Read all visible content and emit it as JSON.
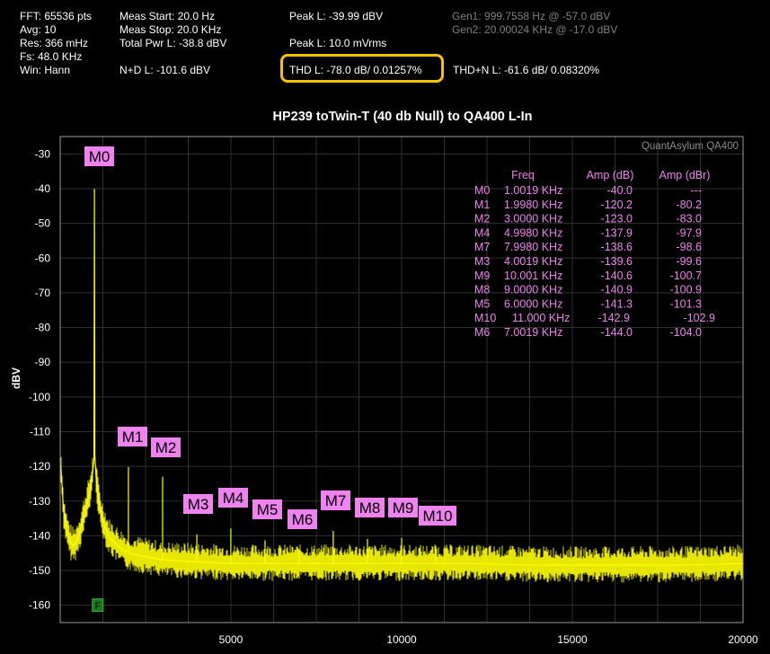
{
  "header": {
    "fft": "FFT: 65536 pts",
    "avg": "Avg: 10",
    "res": "Res: 366 mHz",
    "fs": "Fs: 48.0 KHz",
    "win": "Win: Hann",
    "meas_start": "Meas Start: 20.0 Hz",
    "meas_stop": "Meas Stop: 20.0 KHz",
    "total_pwr": "Total Pwr L: -38.8 dBV",
    "nd": "N+D L: -101.6 dBV",
    "peak_dbv": "Peak L: -39.99 dBV",
    "peak_vrms": "Peak L: 10.0 mVrms",
    "thd": "THD L: -78.0 dB/ 0.01257%",
    "thdn": "THD+N L: -61.6 dB/ 0.08320%",
    "gen1": "Gen1: 999.7558 Hz @ -57.0  dBV",
    "gen2": "Gen2: 20.00024 KHz @ -17.0  dBV"
  },
  "colors": {
    "trace": "#ffff00",
    "marker": "#ee82ee",
    "grid": "#303030",
    "highlight": "#f5c400",
    "f_marker": "#1a7a1a"
  },
  "chart_data": {
    "type": "line",
    "title": "HP239 toTwin-T (40 db Null) to QA400 L-In",
    "watermark": "QuantAsylum QA400",
    "ylabel": "dBV",
    "xlabel": "",
    "xlim": [
      0,
      20000
    ],
    "ylim": [
      -165,
      -25
    ],
    "grid": true,
    "x_ticks": [
      5000,
      10000,
      15000,
      20000
    ],
    "y_ticks": [
      -30,
      -40,
      -50,
      -60,
      -70,
      -80,
      -90,
      -100,
      -110,
      -120,
      -130,
      -140,
      -150,
      -160
    ],
    "series": [
      {
        "x": [
          20,
          100,
          200,
          300,
          400,
          500,
          600,
          700,
          800,
          900,
          950,
          990,
          1001.9,
          1015,
          1050,
          1100,
          1200,
          1400,
          1700,
          2000,
          2500,
          3000,
          4000,
          5000,
          6000,
          8000,
          10000,
          12000,
          14000,
          16000,
          18000,
          20000
        ],
        "y": [
          -120,
          -133,
          -139,
          -142,
          -143,
          -141,
          -138,
          -134,
          -130,
          -126,
          -122,
          -118,
          -40.0,
          -117,
          -123,
          -128,
          -134,
          -140,
          -143,
          -145,
          -146,
          -147,
          -147.5,
          -148,
          -148,
          -148,
          -148,
          -148,
          -148.5,
          -148.5,
          -148.5,
          -148
        ]
      }
    ],
    "markers": [
      {
        "name": "M0",
        "freq_hz": 1001.9,
        "amp_dbv": -40.0
      },
      {
        "name": "M1",
        "freq_hz": 1998.0,
        "amp_dbv": -120.2
      },
      {
        "name": "M2",
        "freq_hz": 3000.0,
        "amp_dbv": -123.0
      },
      {
        "name": "M3",
        "freq_hz": 4001.9,
        "amp_dbv": -139.6
      },
      {
        "name": "M4",
        "freq_hz": 4998.0,
        "amp_dbv": -137.9
      },
      {
        "name": "M5",
        "freq_hz": 6000.0,
        "amp_dbv": -141.3
      },
      {
        "name": "M6",
        "freq_hz": 7001.9,
        "amp_dbv": -144.0
      },
      {
        "name": "M7",
        "freq_hz": 7998.0,
        "amp_dbv": -138.6
      },
      {
        "name": "M8",
        "freq_hz": 9000.0,
        "amp_dbv": -140.9
      },
      {
        "name": "M9",
        "freq_hz": 10001,
        "amp_dbv": -140.6
      },
      {
        "name": "M10",
        "freq_hz": 11000,
        "amp_dbv": -142.9
      }
    ],
    "f_marker": {
      "label": "F",
      "freq_hz": 1100,
      "level_dbv": -160
    },
    "table": {
      "headers": [
        "Freq",
        "Amp (dB)",
        "Amp (dBr)"
      ],
      "rows": [
        [
          "M0",
          "1.0019 KHz",
          "-40.0",
          "---"
        ],
        [
          "M1",
          "1.9980 KHz",
          "-120.2",
          "-80.2"
        ],
        [
          "M2",
          "3.0000 KHz",
          "-123.0",
          "-83.0"
        ],
        [
          "M4",
          "4.9980 KHz",
          "-137.9",
          "-97.9"
        ],
        [
          "M7",
          "7.9980 KHz",
          "-138.6",
          "-98.6"
        ],
        [
          "M3",
          "4.0019 KHz",
          "-139.6",
          "-99.6"
        ],
        [
          "M9",
          "10.001 KHz",
          "-140.6",
          "-100.7"
        ],
        [
          "M8",
          "9.0000 KHz",
          "-140.9",
          "-100.9"
        ],
        [
          "M5",
          "6.0000 KHz",
          "-141.3",
          "-101.3"
        ],
        [
          "M10",
          "11.000 KHz",
          "-142.9",
          "-102.9"
        ],
        [
          "M6",
          "7.0019 KHz",
          "-144.0",
          "-104.0"
        ]
      ]
    }
  }
}
